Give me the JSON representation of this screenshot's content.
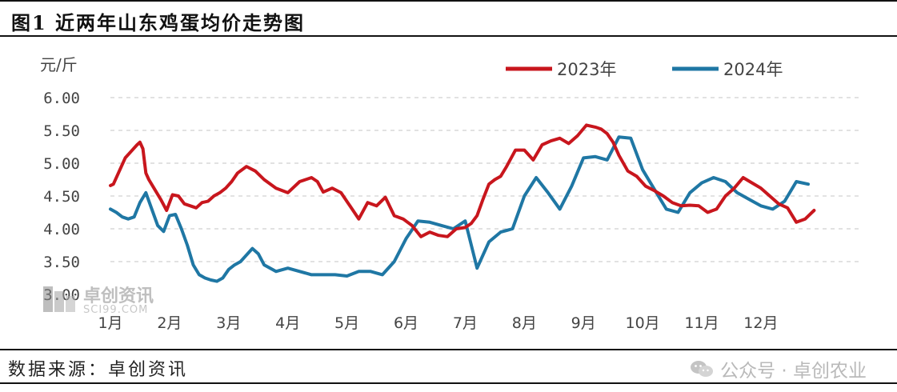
{
  "figure": {
    "title": "图1  近两年山东鸡蛋均价走势图",
    "source": "数据来源：卓创资讯",
    "wechat_label": "公众号 · 卓创农业",
    "watermark": {
      "name": "卓创资讯",
      "url": "SCI99.COM"
    }
  },
  "colors": {
    "series_2023": "#c8161d",
    "series_2024": "#1f77a4",
    "grid": "#d0d0d0"
  },
  "chart_data": {
    "type": "line",
    "title": "近两年山东鸡蛋均价走势图",
    "ylabel": "元/斤",
    "xlabel": "",
    "ylim": [
      3.0,
      6.0
    ],
    "yticks": [
      "3.00",
      "3.50",
      "4.00",
      "4.50",
      "5.00",
      "5.50",
      "6.00"
    ],
    "categories": [
      "1月",
      "2月",
      "3月",
      "4月",
      "5月",
      "6月",
      "7月",
      "8月",
      "9月",
      "10月",
      "11月",
      "12月"
    ],
    "grid": "horizontal dashed",
    "legend_position": "top-right",
    "series": [
      {
        "name": "2023年",
        "x": [
          0.0,
          0.05,
          0.15,
          0.25,
          0.35,
          0.45,
          0.5,
          0.55,
          0.6,
          0.65,
          0.75,
          0.85,
          0.95,
          1.05,
          1.15,
          1.25,
          1.35,
          1.45,
          1.55,
          1.65,
          1.75,
          1.85,
          1.95,
          2.05,
          2.15,
          2.3,
          2.45,
          2.6,
          2.8,
          3.0,
          3.2,
          3.4,
          3.5,
          3.6,
          3.75,
          3.9,
          4.05,
          4.2,
          4.35,
          4.5,
          4.65,
          4.8,
          4.95,
          5.1,
          5.25,
          5.4,
          5.55,
          5.7,
          5.85,
          6.0,
          6.1,
          6.2,
          6.3,
          6.4,
          6.5,
          6.6,
          6.7,
          6.85,
          7.0,
          7.15,
          7.3,
          7.45,
          7.6,
          7.75,
          7.9,
          8.05,
          8.2,
          8.3,
          8.4,
          8.5,
          8.6,
          8.75,
          8.9,
          9.05,
          9.2,
          9.35,
          9.5,
          9.65,
          9.8,
          9.95,
          10.1,
          10.25,
          10.4,
          10.55,
          10.7,
          10.85,
          11.0,
          11.15,
          11.3,
          11.45,
          11.6,
          11.75,
          11.9
        ],
        "values": [
          4.66,
          4.68,
          4.88,
          5.08,
          5.18,
          5.28,
          5.32,
          5.22,
          4.85,
          4.75,
          4.6,
          4.45,
          4.28,
          4.52,
          4.5,
          4.38,
          4.35,
          4.32,
          4.4,
          4.42,
          4.5,
          4.55,
          4.62,
          4.72,
          4.85,
          4.95,
          4.88,
          4.75,
          4.62,
          4.55,
          4.72,
          4.78,
          4.72,
          4.56,
          4.62,
          4.55,
          4.35,
          4.15,
          4.4,
          4.35,
          4.48,
          4.2,
          4.15,
          4.05,
          3.88,
          3.95,
          3.9,
          3.88,
          4.0,
          4.02,
          4.08,
          4.2,
          4.45,
          4.68,
          4.75,
          4.8,
          4.95,
          5.2,
          5.2,
          5.05,
          5.28,
          5.34,
          5.38,
          5.3,
          5.42,
          5.58,
          5.55,
          5.52,
          5.45,
          5.32,
          5.12,
          4.88,
          4.8,
          4.65,
          4.58,
          4.5,
          4.4,
          4.35,
          4.36,
          4.35,
          4.25,
          4.3,
          4.5,
          4.62,
          4.78,
          4.7,
          4.62,
          4.5,
          4.38,
          4.32,
          4.1,
          4.15,
          4.28
        ]
      },
      {
        "name": "2024年",
        "x": [
          0.0,
          0.1,
          0.2,
          0.3,
          0.4,
          0.5,
          0.6,
          0.7,
          0.8,
          0.9,
          1.0,
          1.1,
          1.2,
          1.3,
          1.4,
          1.5,
          1.6,
          1.7,
          1.8,
          1.9,
          2.0,
          2.1,
          2.2,
          2.3,
          2.4,
          2.5,
          2.6,
          2.8,
          3.0,
          3.2,
          3.4,
          3.6,
          3.8,
          4.0,
          4.2,
          4.4,
          4.6,
          4.8,
          5.0,
          5.2,
          5.4,
          5.6,
          5.8,
          6.0,
          6.2,
          6.4,
          6.6,
          6.8,
          7.0,
          7.2,
          7.4,
          7.6,
          7.8,
          8.0,
          8.2,
          8.4,
          8.6,
          8.8,
          9.0,
          9.2,
          9.4,
          9.6,
          9.8,
          10.0,
          10.2,
          10.4,
          10.6,
          10.8,
          11.0,
          11.2,
          11.4,
          11.6,
          11.8
        ],
        "values": [
          4.3,
          4.25,
          4.18,
          4.15,
          4.18,
          4.4,
          4.55,
          4.3,
          4.05,
          3.96,
          4.2,
          4.22,
          4.0,
          3.75,
          3.45,
          3.3,
          3.25,
          3.22,
          3.2,
          3.25,
          3.38,
          3.45,
          3.5,
          3.6,
          3.7,
          3.62,
          3.45,
          3.35,
          3.4,
          3.35,
          3.3,
          3.3,
          3.3,
          3.28,
          3.35,
          3.35,
          3.3,
          3.5,
          3.85,
          4.12,
          4.1,
          4.05,
          4.0,
          4.12,
          3.4,
          3.8,
          3.95,
          4.0,
          4.5,
          4.78,
          4.55,
          4.3,
          4.65,
          5.08,
          5.1,
          5.05,
          5.4,
          5.38,
          4.9,
          4.6,
          4.3,
          4.25,
          4.55,
          4.7,
          4.78,
          4.72,
          4.55,
          4.45,
          4.35,
          4.3,
          4.42,
          4.72,
          4.68
        ]
      }
    ]
  }
}
